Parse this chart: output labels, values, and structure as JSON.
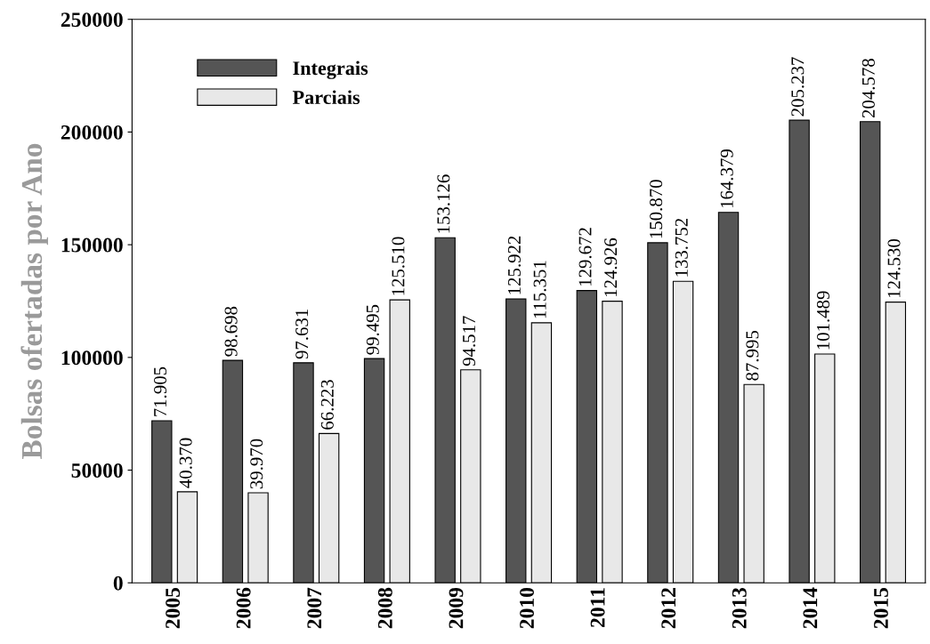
{
  "chart_data": {
    "type": "bar",
    "ylabel": "Bolsas ofertadas por Ano",
    "categories": [
      "2005",
      "2006",
      "2007",
      "2008",
      "2009",
      "2010",
      "2011",
      "2012",
      "2013",
      "2014",
      "2015"
    ],
    "series": [
      {
        "name": "Integrais",
        "color": "#555555",
        "values": [
          71905,
          98698,
          97631,
          99495,
          153126,
          125922,
          129672,
          150870,
          164379,
          205237,
          204578
        ],
        "value_labels": [
          "71.905",
          "98.698",
          "97.631",
          "99.495",
          "153.126",
          "125.922",
          "129.672",
          "150.870",
          "164.379",
          "205.237",
          "204.578"
        ]
      },
      {
        "name": "Parciais",
        "color": "#e8e8e8",
        "values": [
          40370,
          39970,
          66223,
          125510,
          94517,
          115351,
          124926,
          133752,
          87995,
          101489,
          124530
        ],
        "value_labels": [
          "40.370",
          "39.970",
          "66.223",
          "125.510",
          "94.517",
          "115.351",
          "124.926",
          "133.752",
          "87.995",
          "101.489",
          "124.530"
        ]
      }
    ],
    "ylim": [
      0,
      250000
    ],
    "yticks": [
      0,
      50000,
      100000,
      150000,
      200000,
      250000
    ],
    "grid": false,
    "legend": "top left"
  }
}
